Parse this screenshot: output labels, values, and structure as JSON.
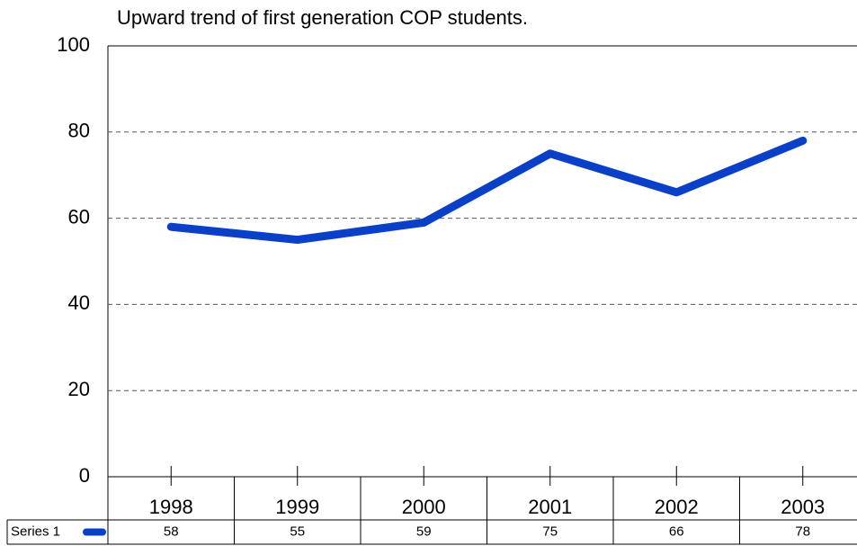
{
  "chart_data": {
    "type": "line",
    "title": "Upward trend of first generation COP students.",
    "categories": [
      "1998",
      "1999",
      "2000",
      "2001",
      "2002",
      "2003"
    ],
    "series": [
      {
        "name": "Series 1",
        "color": "#0a3fc8",
        "values": [
          58,
          55,
          59,
          75,
          66,
          78
        ]
      }
    ],
    "ylim": [
      0,
      100
    ],
    "yticks": [
      0,
      20,
      40,
      60,
      80,
      100
    ],
    "grid": true,
    "data_table": true
  }
}
